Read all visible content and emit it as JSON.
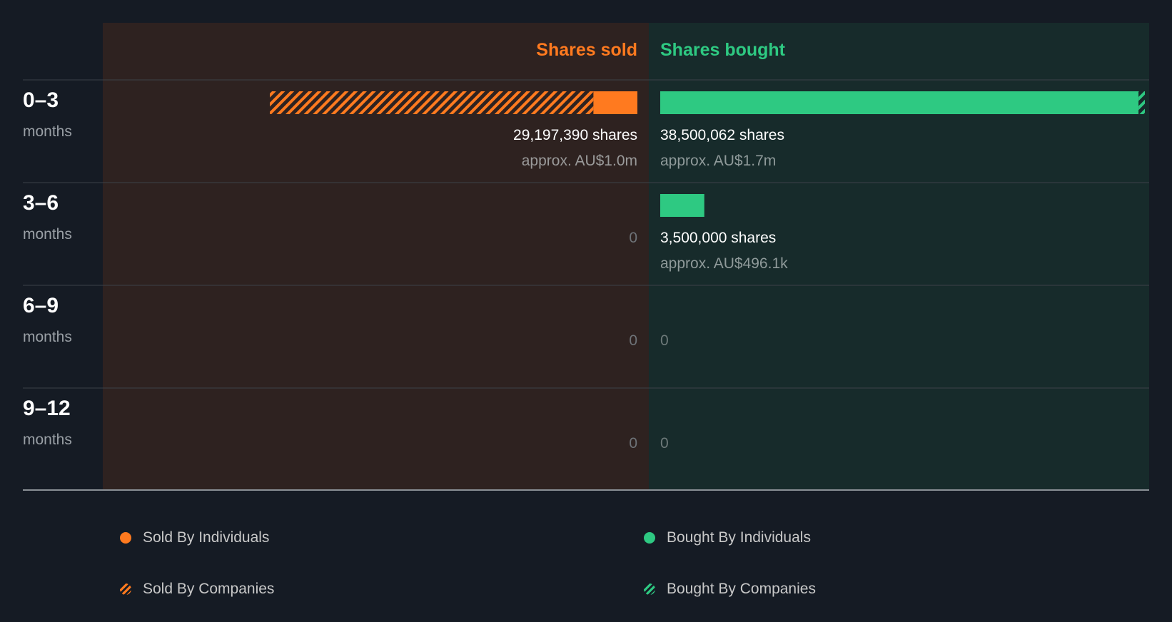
{
  "chart_data": {
    "type": "bar",
    "orientation": "horizontal-diverging",
    "header": {
      "sold": "Shares sold",
      "bought": "Shares bought"
    },
    "periods": [
      {
        "range": "0–3",
        "unit": "months",
        "sold": {
          "individuals": 3500000,
          "companies": 25697390,
          "label": "29,197,390 shares",
          "value": "approx. AU$1.0m"
        },
        "bought": {
          "individuals": 38000062,
          "companies": 500000,
          "label": "38,500,062 shares",
          "value": "approx. AU$1.7m"
        }
      },
      {
        "range": "3–6",
        "unit": "months",
        "sold": {
          "individuals": 0,
          "companies": 0,
          "label": "0",
          "value": ""
        },
        "bought": {
          "individuals": 3500000,
          "companies": 0,
          "label": "3,500,000 shares",
          "value": "approx. AU$496.1k"
        }
      },
      {
        "range": "6–9",
        "unit": "months",
        "sold": {
          "individuals": 0,
          "companies": 0,
          "label": "0",
          "value": ""
        },
        "bought": {
          "individuals": 0,
          "companies": 0,
          "label": "0",
          "value": ""
        }
      },
      {
        "range": "9–12",
        "unit": "months",
        "sold": {
          "individuals": 0,
          "companies": 0,
          "label": "0",
          "value": ""
        },
        "bought": {
          "individuals": 0,
          "companies": 0,
          "label": "0",
          "value": ""
        }
      }
    ],
    "legend": {
      "sold_individuals": "Sold By Individuals",
      "sold_companies": "Sold By Companies",
      "bought_individuals": "Bought By Individuals",
      "bought_companies": "Bought By Companies"
    },
    "colors": {
      "sold": "#ff7a1f",
      "bought": "#2ec982",
      "sold_panel": "#2e2220",
      "bought_panel": "#172b2b",
      "background": "#151b24"
    }
  }
}
